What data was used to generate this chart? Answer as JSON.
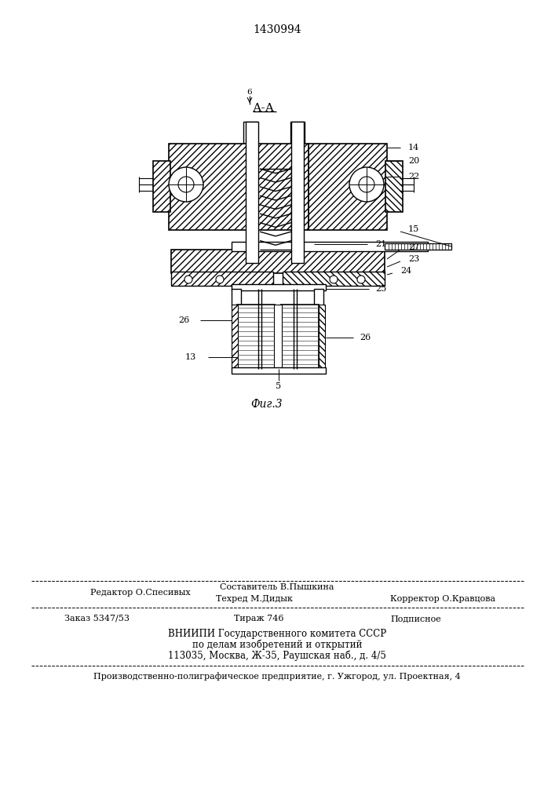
{
  "patent_number": "1430994",
  "figure_label": "Фиг.3",
  "section_label": "А-А",
  "bg_color": "#ffffff",
  "footer": {
    "editor": "Редактор О.Спесивых",
    "composer": "Составитель В.Пышкина",
    "techred": "Техред М.Дидык",
    "corrector": "Корректор О.Кравцова",
    "order": "Заказ 5347/53",
    "tirazh": "Тираж 746",
    "podpisnoe": "Подписное",
    "vniiipi_line1": "ВНИИПИ Государственного комитета СССР",
    "vniiipi_line2": "по делам изобретений и открытий",
    "vniiipi_line3": "113035, Москва, Ж-35, Раушская наб., д. 4/5",
    "production": "Производственно-полиграфическое предприятие, г. Ужгород, ул. Проектная, 4"
  }
}
